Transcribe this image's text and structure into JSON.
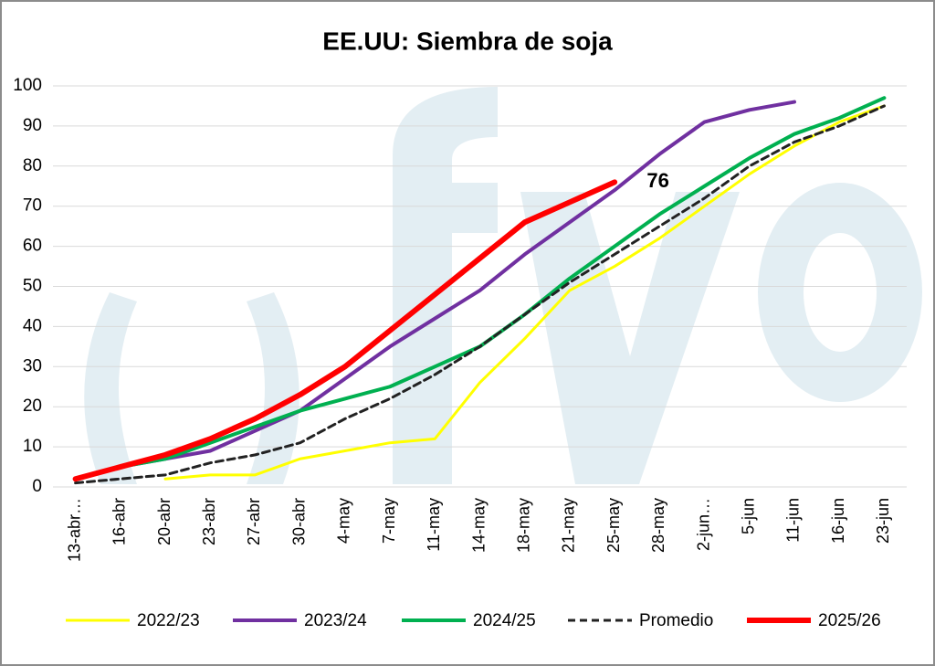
{
  "chart_data": {
    "type": "line",
    "title": "EE.UU: Siembra de soja",
    "categories": [
      "13-abr…",
      "16-abr",
      "20-abr",
      "23-abr",
      "27-abr",
      "30-abr",
      "4-may",
      "7-may",
      "11-may",
      "14-may",
      "18-may",
      "21-may",
      "25-may",
      "28-may",
      "2-jun…",
      "5-jun",
      "11-jun",
      "16-jun",
      "23-jun"
    ],
    "series": [
      {
        "name": "2022/23",
        "color": "#ffff00",
        "dash": false,
        "width": 3,
        "values": [
          null,
          null,
          2,
          3,
          3,
          7,
          9,
          11,
          12,
          26,
          37,
          49,
          55,
          62,
          70,
          78,
          85,
          91,
          95
        ]
      },
      {
        "name": "2023/24",
        "color": "#7030a0",
        "dash": false,
        "width": 4,
        "values": [
          2,
          5,
          7,
          9,
          14,
          19,
          27,
          35,
          42,
          49,
          58,
          66,
          74,
          83,
          91,
          94,
          96,
          null,
          null
        ]
      },
      {
        "name": "2024/25",
        "color": "#00b050",
        "dash": false,
        "width": 4,
        "values": [
          2,
          5,
          7,
          11,
          15,
          19,
          22,
          25,
          30,
          35,
          43,
          52,
          60,
          68,
          75,
          82,
          88,
          92,
          97
        ]
      },
      {
        "name": "Promedio",
        "color": "#222222",
        "dash": true,
        "width": 3,
        "values": [
          1,
          2,
          3,
          6,
          8,
          11,
          17,
          22,
          28,
          35,
          43,
          51,
          58,
          65,
          72,
          80,
          86,
          90,
          95
        ]
      },
      {
        "name": "2025/26",
        "color": "#ff0000",
        "dash": false,
        "width": 6,
        "values": [
          2,
          5,
          8,
          12,
          17,
          23,
          30,
          39,
          48,
          57,
          66,
          71,
          76,
          null,
          null,
          null,
          null,
          null,
          null
        ]
      }
    ],
    "annotation": {
      "text": "76",
      "category": 13,
      "value": 76
    },
    "ylim": [
      0,
      100
    ],
    "yticks": [
      0,
      10,
      20,
      30,
      40,
      50,
      60,
      70,
      80,
      90,
      100
    ],
    "grid": true
  }
}
